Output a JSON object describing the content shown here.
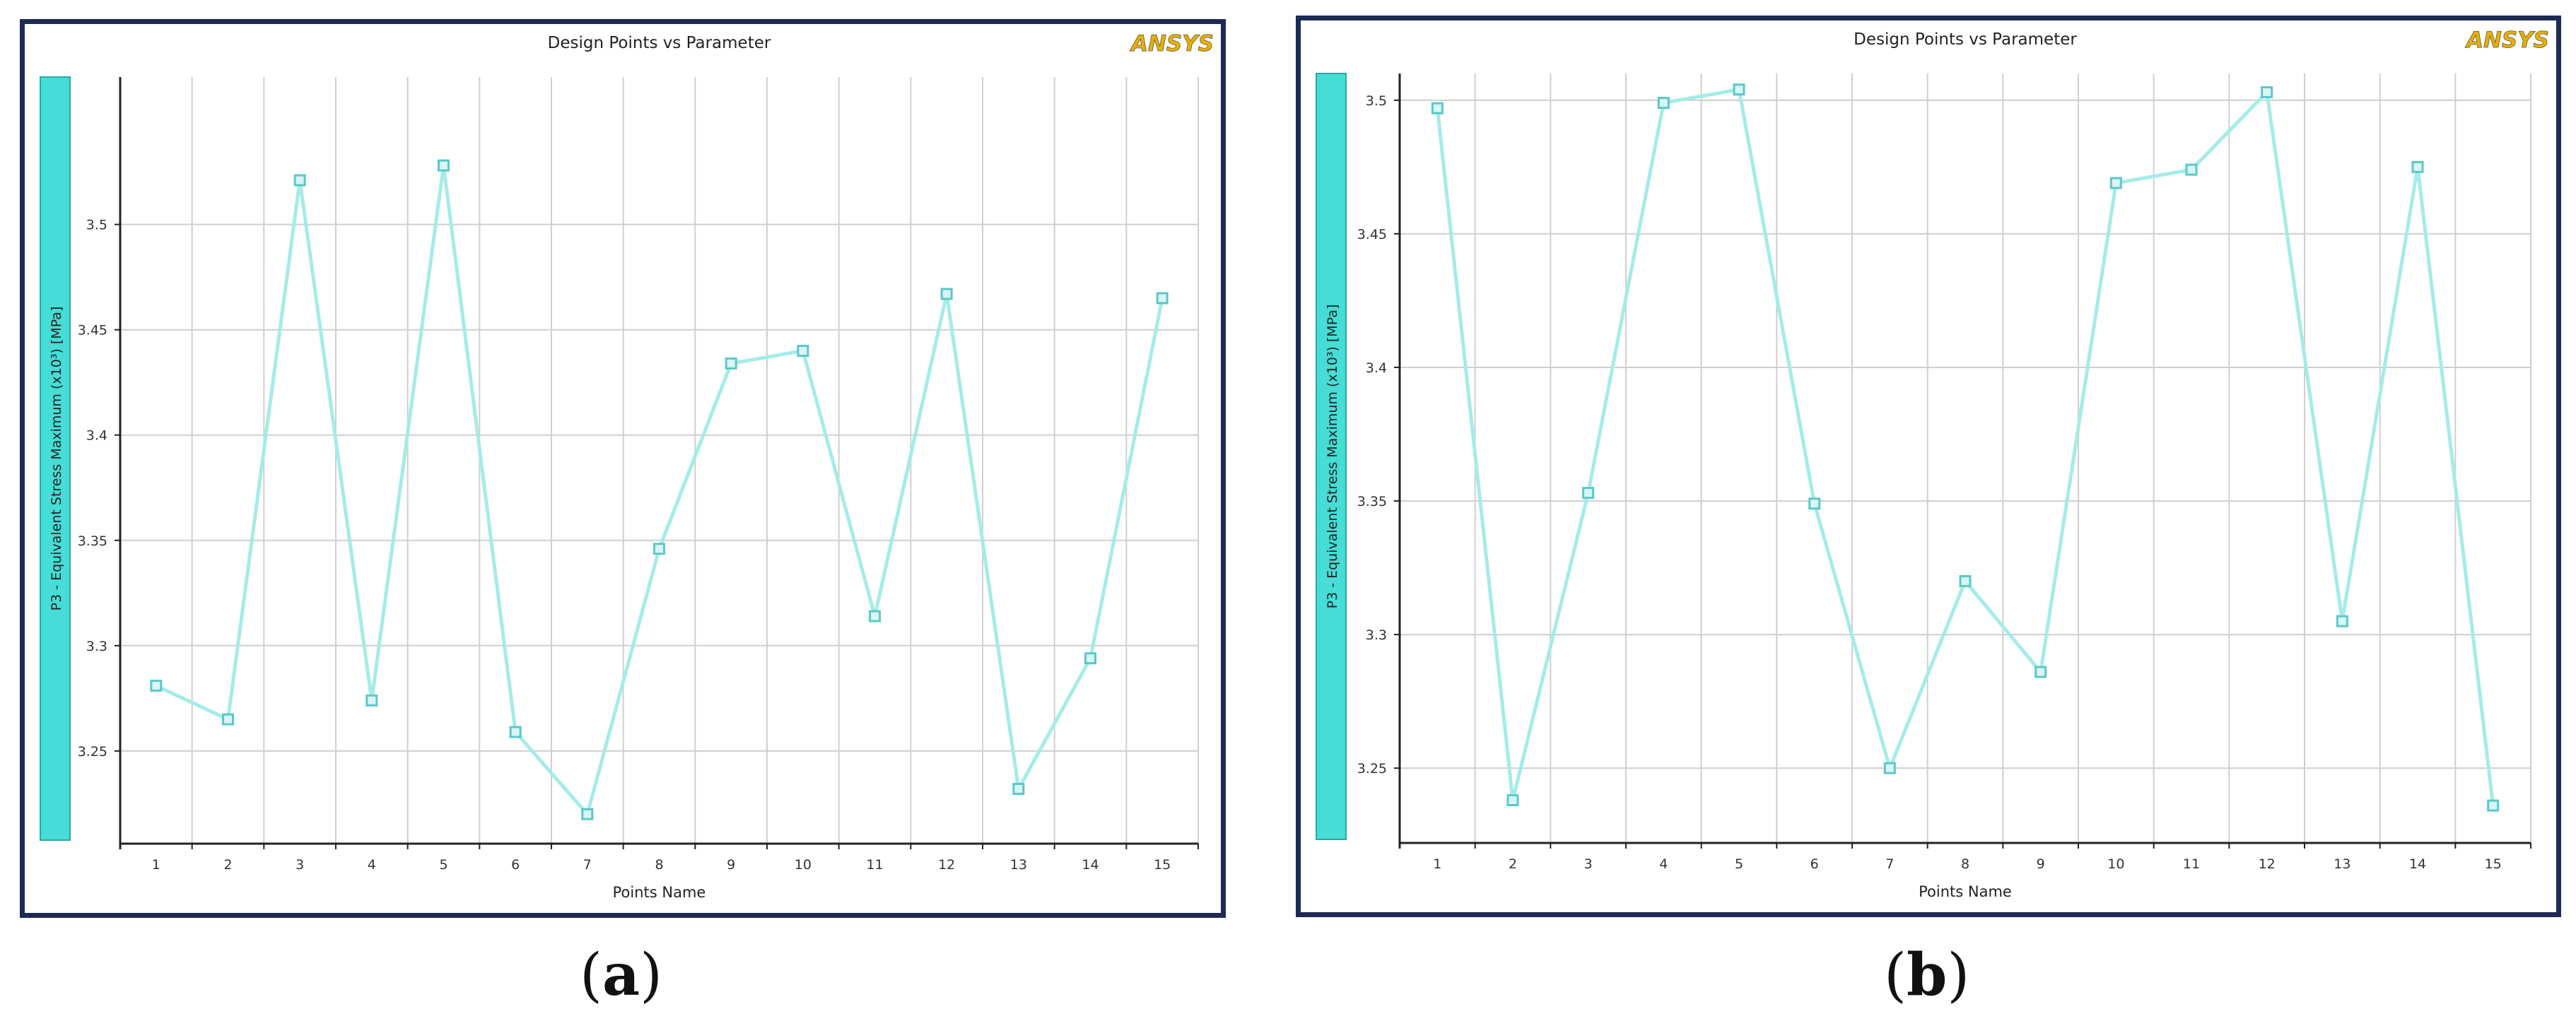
{
  "logo_text": "ANSYS",
  "chart_data": [
    {
      "type": "line",
      "panel_label": "a",
      "title": "Design Points vs Parameter",
      "xlabel": "Points Name",
      "ylabel": "P3 - Equivalent Stress Maximum  (x10³)  [MPa]",
      "categories": [
        "1",
        "2",
        "3",
        "4",
        "5",
        "6",
        "7",
        "8",
        "9",
        "10",
        "11",
        "12",
        "13",
        "14",
        "15"
      ],
      "values": [
        3.281,
        3.265,
        3.521,
        3.274,
        3.528,
        3.259,
        3.22,
        3.346,
        3.434,
        3.44,
        3.314,
        3.467,
        3.232,
        3.294,
        3.465
      ],
      "yticks": [
        "3.25",
        "3.3",
        "3.35",
        "3.4",
        "3.45",
        "3.5"
      ],
      "ylim": [
        3.206,
        3.57
      ],
      "grid": true,
      "series_color": "#a4ece8",
      "marker_color": "#5cc8c8",
      "label_bar_color": "#45ddd5"
    },
    {
      "type": "line",
      "panel_label": "b",
      "title": "Design Points vs Parameter",
      "xlabel": "Points Name",
      "ylabel": "P3 - Equivalent Stress Maximum  (x10³)  [MPa]",
      "categories": [
        "1",
        "2",
        "3",
        "4",
        "5",
        "6",
        "7",
        "8",
        "9",
        "10",
        "11",
        "12",
        "13",
        "14",
        "15"
      ],
      "values": [
        3.497,
        3.238,
        3.353,
        3.499,
        3.504,
        3.349,
        3.25,
        3.32,
        3.286,
        3.469,
        3.474,
        3.503,
        3.305,
        3.475,
        3.236
      ],
      "yticks": [
        "3.25",
        "3.3",
        "3.35",
        "3.4",
        "3.45",
        "3.5"
      ],
      "ylim": [
        3.222,
        3.51
      ],
      "grid": true,
      "series_color": "#a4ece8",
      "marker_color": "#5cc8c8",
      "label_bar_color": "#45ddd5"
    }
  ]
}
